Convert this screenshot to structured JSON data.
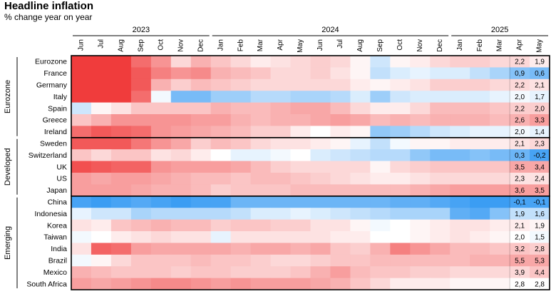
{
  "chart_data": {
    "type": "heatmap",
    "title": "Headline inflation",
    "subtitle": "% change year on year",
    "years": [
      {
        "label": "2023",
        "start": 0,
        "end": 6
      },
      {
        "label": "2024",
        "start": 7,
        "end": 18
      },
      {
        "label": "2025",
        "start": 19,
        "end": 23
      }
    ],
    "months": [
      "Jun",
      "Jul",
      "Aug",
      "Sep",
      "Oct",
      "Nov",
      "Dec",
      "Jan",
      "Feb",
      "Mar",
      "Apr",
      "May",
      "Jun",
      "Jul",
      "Aug",
      "Sep",
      "Oct",
      "Nov",
      "Dec",
      "Jan",
      "Feb",
      "Mar",
      "Apr",
      "May"
    ],
    "value_columns": [
      "Apr",
      "May"
    ],
    "color_scale": {
      "low": "#0a84f0",
      "mid": "#ffffff",
      "high": "#f03c3c"
    },
    "groups": [
      {
        "label": "Eurozone",
        "rows": [
          {
            "name": "Eurozone",
            "apr": "2,2",
            "may": "1,9",
            "z": [
              1,
              1,
              1,
              0.75,
              0.55,
              0.2,
              0.4,
              0.3,
              0.2,
              0.1,
              0.15,
              0.2,
              0.25,
              0.2,
              0.05,
              -0.2,
              0.05,
              0.1,
              0.2,
              0.25,
              0.25,
              0.2,
              0.2,
              0.1
            ]
          },
          {
            "name": "France",
            "apr": "0,9",
            "may": "0,6",
            "z": [
              1,
              1,
              1,
              0.85,
              0.65,
              0.55,
              0.6,
              0.4,
              0.35,
              0.3,
              0.2,
              0.2,
              0.25,
              0.15,
              0.05,
              -0.25,
              -0.15,
              -0.1,
              -0.15,
              -0.15,
              -0.25,
              -0.35,
              -0.5,
              -0.55
            ]
          },
          {
            "name": "Germany",
            "apr": "2,2",
            "may": "2,1",
            "z": [
              1,
              1,
              1,
              0.85,
              0.4,
              0.25,
              0.35,
              0.3,
              0.25,
              0.2,
              0.2,
              0.2,
              0.2,
              0.2,
              0.1,
              0.05,
              0.1,
              0.15,
              0.25,
              0.25,
              0.25,
              0.2,
              0.2,
              0.15
            ]
          },
          {
            "name": "Italy",
            "apr": "2,0",
            "may": "1,7",
            "z": [
              1,
              1,
              1,
              0.75,
              -0.05,
              -0.55,
              -0.55,
              -0.4,
              -0.4,
              -0.3,
              -0.3,
              -0.35,
              -0.35,
              -0.3,
              -0.15,
              -0.4,
              -0.2,
              -0.15,
              -0.15,
              -0.15,
              -0.15,
              -0.1,
              -0.05,
              -0.1
            ]
          },
          {
            "name": "Spain",
            "apr": "2,2",
            "may": "2,0",
            "z": [
              -0.2,
              0.05,
              0.15,
              0.3,
              0.3,
              0.3,
              0.3,
              0.4,
              0.35,
              0.35,
              0.4,
              0.45,
              0.45,
              0.35,
              0.2,
              0.1,
              0.1,
              0.2,
              0.35,
              0.35,
              0.35,
              0.3,
              0.25,
              0.25
            ]
          },
          {
            "name": "Greece",
            "apr": "2,6",
            "may": "3,3",
            "z": [
              0.3,
              0.4,
              0.55,
              0.55,
              0.55,
              0.55,
              0.5,
              0.5,
              0.4,
              0.35,
              0.4,
              0.4,
              0.45,
              0.5,
              0.45,
              0.35,
              0.4,
              0.35,
              0.4,
              0.4,
              0.4,
              0.35,
              0.4,
              0.5
            ]
          },
          {
            "name": "Ireland",
            "apr": "2,0",
            "may": "1,4",
            "z": [
              0.75,
              0.85,
              0.8,
              0.75,
              0.55,
              0.5,
              0.45,
              0.4,
              0.35,
              0.25,
              0.25,
              0.1,
              0.0,
              0.1,
              0.05,
              -0.45,
              -0.4,
              -0.3,
              -0.2,
              -0.15,
              -0.1,
              -0.1,
              -0.05,
              -0.1
            ]
          }
        ]
      },
      {
        "label": "Developed",
        "rows": [
          {
            "name": "Sweden",
            "apr": "2,1",
            "may": "2,3",
            "z": [
              0.85,
              0.85,
              0.85,
              0.7,
              0.55,
              0.45,
              0.25,
              0.35,
              0.3,
              0.2,
              0.15,
              0.15,
              0.1,
              0.05,
              -0.1,
              -0.25,
              -0.05,
              0.05,
              0.05,
              0.1,
              0.1,
              0.1,
              0.15,
              0.2
            ]
          },
          {
            "name": "Switzerland",
            "apr": "0,3",
            "may": "-0,2",
            "z": [
              0.3,
              0.2,
              0.3,
              0.3,
              0.15,
              0.2,
              0.1,
              0.0,
              -0.1,
              -0.1,
              -0.05,
              0.0,
              -0.15,
              -0.2,
              -0.25,
              -0.3,
              -0.3,
              -0.45,
              -0.55,
              -0.55,
              -0.5,
              -0.55,
              -0.6,
              -0.75
            ]
          },
          {
            "name": "UK",
            "apr": "3,5",
            "may": "3,4",
            "z": [
              0.9,
              0.85,
              0.8,
              0.8,
              0.55,
              0.5,
              0.5,
              0.5,
              0.45,
              0.35,
              0.25,
              0.2,
              0.2,
              0.2,
              0.2,
              0.05,
              0.2,
              0.25,
              0.3,
              0.3,
              0.3,
              0.3,
              0.45,
              0.45
            ]
          },
          {
            "name": "US",
            "apr": "2,3",
            "may": "2,4",
            "z": [
              0.5,
              0.45,
              0.5,
              0.5,
              0.45,
              0.4,
              0.35,
              0.35,
              0.3,
              0.35,
              0.35,
              0.3,
              0.25,
              0.2,
              0.15,
              0.1,
              0.1,
              0.15,
              0.2,
              0.2,
              0.2,
              0.2,
              0.15,
              0.15
            ]
          },
          {
            "name": "Japan",
            "apr": "3,6",
            "may": "3,5",
            "z": [
              0.5,
              0.5,
              0.5,
              0.45,
              0.4,
              0.4,
              0.35,
              0.25,
              0.3,
              0.3,
              0.3,
              0.35,
              0.35,
              0.35,
              0.35,
              0.35,
              0.35,
              0.4,
              0.45,
              0.5,
              0.5,
              0.5,
              0.5,
              0.5
            ]
          }
        ]
      },
      {
        "label": "Emerging",
        "rows": [
          {
            "name": "China",
            "apr": "-0,1",
            "may": "-0,1",
            "z": [
              -0.75,
              -0.8,
              -0.75,
              -0.7,
              -0.75,
              -0.8,
              -0.75,
              -0.75,
              -0.6,
              -0.6,
              -0.6,
              -0.6,
              -0.6,
              -0.6,
              -0.6,
              -0.6,
              -0.65,
              -0.65,
              -0.7,
              -0.75,
              -0.8,
              -0.8,
              -0.75,
              -0.75
            ]
          },
          {
            "name": "Indonesia",
            "apr": "1,9",
            "may": "1,6",
            "z": [
              -0.1,
              -0.2,
              -0.2,
              -0.35,
              -0.3,
              -0.3,
              -0.3,
              -0.3,
              -0.25,
              -0.15,
              -0.15,
              -0.1,
              -0.15,
              -0.2,
              -0.25,
              -0.3,
              -0.35,
              -0.35,
              -0.35,
              -0.65,
              -0.7,
              -0.5,
              -0.25,
              -0.25
            ]
          },
          {
            "name": "Korea",
            "apr": "2,1",
            "may": "1,9",
            "z": [
              0.15,
              0.1,
              0.3,
              0.35,
              0.4,
              0.35,
              0.35,
              0.25,
              0.3,
              0.3,
              0.25,
              0.25,
              0.15,
              0.15,
              0.05,
              -0.05,
              0.0,
              0.05,
              0.1,
              0.15,
              0.15,
              0.1,
              0.1,
              0.05
            ]
          },
          {
            "name": "Taiwan",
            "apr": "2,0",
            "may": "1,5",
            "z": [
              -0.05,
              0.0,
              0.1,
              0.15,
              0.2,
              0.15,
              0.15,
              -0.1,
              0.15,
              0.15,
              0.15,
              0.15,
              0.15,
              0.1,
              0.1,
              0.0,
              0.0,
              0.05,
              0.1,
              0.15,
              0.1,
              0.05,
              0.0,
              -0.05
            ]
          },
          {
            "name": "India",
            "apr": "3,2",
            "may": "2,8",
            "z": [
              0.15,
              0.8,
              0.75,
              0.5,
              0.45,
              0.45,
              0.45,
              0.45,
              0.4,
              0.45,
              0.45,
              0.4,
              0.45,
              0.3,
              0.25,
              0.4,
              0.65,
              0.55,
              0.45,
              0.35,
              0.35,
              0.3,
              0.3,
              0.25
            ]
          },
          {
            "name": "Brazil",
            "apr": "5,5",
            "may": "5,3",
            "z": [
              -0.05,
              0.05,
              0.2,
              0.3,
              0.3,
              0.3,
              0.35,
              0.3,
              0.3,
              0.25,
              0.2,
              0.2,
              0.25,
              0.3,
              0.3,
              0.35,
              0.35,
              0.35,
              0.35,
              0.35,
              0.4,
              0.4,
              0.45,
              0.45
            ]
          },
          {
            "name": "Mexico",
            "apr": "3,9",
            "may": "4,4",
            "z": [
              0.4,
              0.35,
              0.3,
              0.3,
              0.3,
              0.25,
              0.3,
              0.3,
              0.25,
              0.25,
              0.25,
              0.3,
              0.4,
              0.5,
              0.35,
              0.3,
              0.3,
              0.25,
              0.25,
              0.2,
              0.2,
              0.2,
              0.2,
              0.3
            ]
          },
          {
            "name": "South Africa",
            "apr": "2,8",
            "may": "2,8",
            "z": [
              0.5,
              0.45,
              0.5,
              0.55,
              0.6,
              0.6,
              0.55,
              0.5,
              0.55,
              0.5,
              0.5,
              0.5,
              0.45,
              0.4,
              0.3,
              0.2,
              0.1,
              0.1,
              0.1,
              0.05,
              0.05,
              0.05,
              0.0,
              0.0
            ]
          }
        ]
      }
    ]
  }
}
